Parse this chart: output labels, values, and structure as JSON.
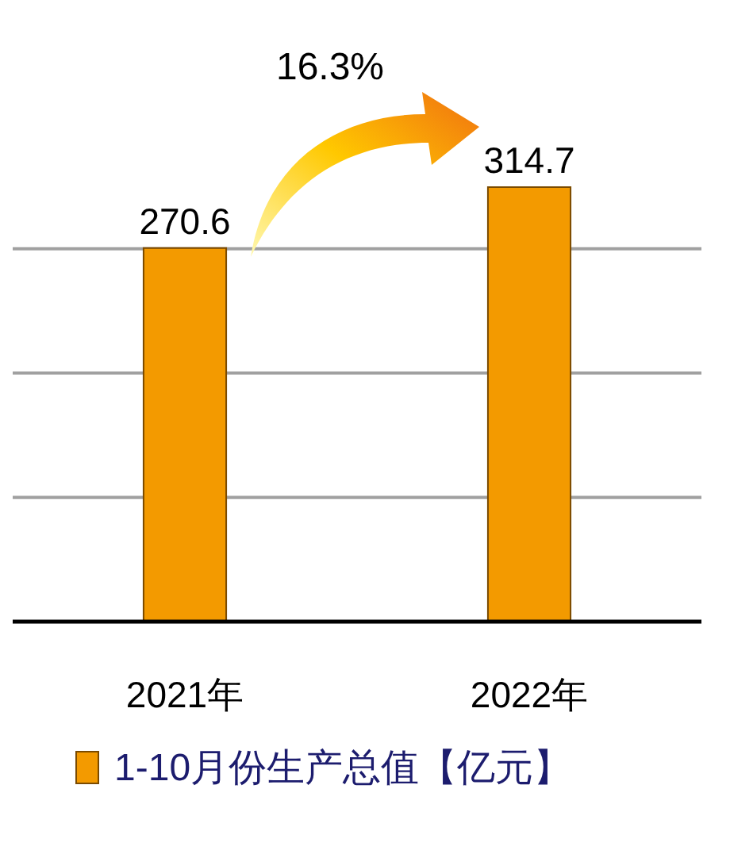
{
  "chart_data": {
    "type": "bar",
    "categories": [
      "2021年",
      "2022年"
    ],
    "series": [
      {
        "name": "1-10月份生产总值【亿元】",
        "color": "#f39a00",
        "values": [
          270.6,
          314.7
        ]
      }
    ],
    "yticks": [
      {
        "value": 0,
        "label": null
      },
      {
        "value": 90,
        "label": null
      },
      {
        "value": 180,
        "label": null
      },
      {
        "value": 270,
        "label": null
      }
    ],
    "tick_labels": "x",
    "grid": "y",
    "data_labels": true,
    "legend": "bottom",
    "annotations": [
      "16.3%"
    ]
  }
}
